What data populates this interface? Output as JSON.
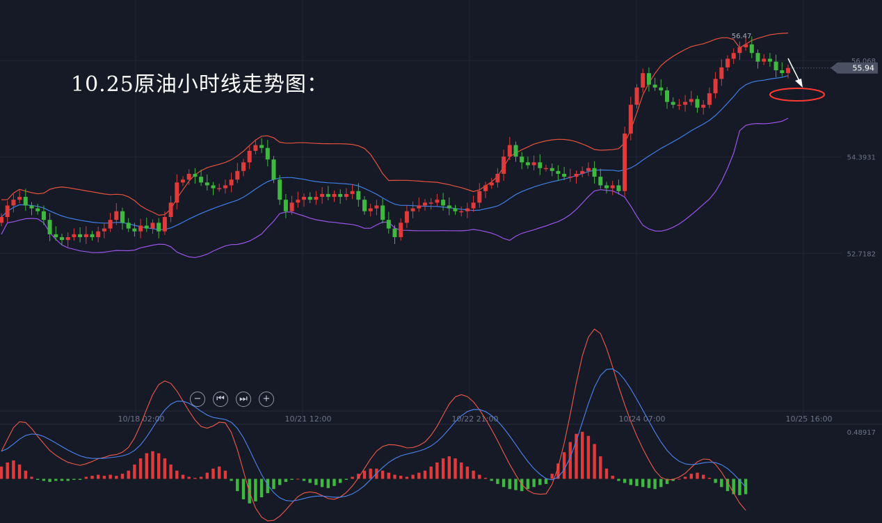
{
  "header": {
    "title": "10.25原油小时线走势图："
  },
  "controls": {
    "zoom_out": "−",
    "step_back": "⏮",
    "step_forward": "⏭",
    "zoom_in": "+"
  },
  "price_panel": {
    "high_label": "56.47",
    "last_price": "55.94",
    "axis_labels": [
      "56.068",
      "54.3931",
      "52.7182"
    ]
  },
  "time_axis": [
    "10/18 02:00",
    "10/21 12:00",
    "10/22 21:00",
    "10/24 07:00",
    "10/25 16:00"
  ],
  "macd_panel": {
    "axis_label": "0.48917"
  },
  "colors": {
    "background": "#161a27",
    "up": "#e03a3a",
    "down": "#3fb83f",
    "middle_band": "#3f7fe8",
    "upper_band": "#e5533d",
    "lower_band": "#9b55e8",
    "macd_line": "#4a86f0",
    "signal_line": "#ef5a48",
    "annotation": "#ff3b30"
  },
  "chart_data": [
    {
      "type": "candlestick",
      "title": "10.25原油小时线走势图：",
      "interval": "1h",
      "ylim": [
        51.9,
        57.0
      ],
      "y_ticks": [
        56.068,
        54.3931,
        52.7182
      ],
      "x_ticks": [
        "10/18 02:00",
        "10/21 12:00",
        "10/22 21:00",
        "10/24 07:00",
        "10/25 16:00"
      ],
      "last_price": 55.94,
      "high_marker": 56.47,
      "candles_close": [
        53.35,
        53.55,
        53.65,
        53.7,
        53.55,
        53.5,
        53.45,
        53.3,
        53.05,
        53.0,
        52.95,
        53.0,
        53.05,
        53.0,
        53.05,
        53.0,
        53.1,
        53.15,
        53.3,
        53.45,
        53.25,
        53.15,
        53.1,
        53.2,
        53.15,
        53.25,
        53.1,
        53.35,
        53.6,
        53.95,
        54.0,
        54.1,
        54.05,
        53.95,
        53.9,
        53.85,
        53.85,
        53.9,
        54.0,
        54.15,
        54.3,
        54.5,
        54.6,
        54.55,
        54.35,
        54.0,
        53.65,
        53.45,
        53.6,
        53.65,
        53.7,
        53.65,
        53.7,
        53.75,
        53.7,
        53.75,
        53.7,
        53.75,
        53.8,
        53.65,
        53.45,
        53.5,
        53.55,
        53.3,
        53.15,
        53.0,
        53.25,
        53.45,
        53.5,
        53.55,
        53.6,
        53.6,
        53.65,
        53.55,
        53.5,
        53.45,
        53.45,
        53.5,
        53.6,
        53.8,
        53.9,
        53.95,
        54.1,
        54.4,
        54.6,
        54.4,
        54.3,
        54.25,
        54.3,
        54.2,
        54.2,
        54.15,
        54.1,
        54.05,
        54.05,
        54.1,
        54.15,
        54.2,
        54.05,
        53.9,
        53.85,
        53.9,
        53.8,
        54.8,
        55.3,
        55.6,
        55.85,
        55.65,
        55.6,
        55.55,
        55.35,
        55.3,
        55.3,
        55.35,
        55.4,
        55.25,
        55.3,
        55.5,
        55.75,
        55.95,
        56.1,
        56.2,
        56.3,
        56.35,
        56.2,
        56.05,
        56.1,
        56.05,
        55.9,
        55.85,
        55.94
      ],
      "bollinger": {
        "period": 20,
        "upper_shape": "widening after 10/24 07:00, peak near 57.0",
        "lower_shape": "min near 52.9 before sharp rally"
      }
    },
    {
      "type": "bar",
      "title": "MACD",
      "ylim": [
        -0.35,
        0.52
      ],
      "y_ticks": [
        0.48917
      ],
      "histogram": [
        0.12,
        0.16,
        0.18,
        0.14,
        0.08,
        0.02,
        -0.01,
        -0.02,
        -0.03,
        -0.02,
        -0.02,
        -0.02,
        -0.01,
        -0.01,
        0.02,
        0.03,
        0.04,
        0.03,
        0.04,
        0.03,
        0.05,
        0.08,
        0.14,
        0.2,
        0.25,
        0.27,
        0.25,
        0.2,
        0.14,
        0.08,
        0.04,
        0.02,
        0.01,
        0.02,
        0.06,
        0.1,
        0.12,
        0.08,
        -0.02,
        -0.12,
        -0.2,
        -0.24,
        -0.22,
        -0.18,
        -0.14,
        -0.1,
        -0.06,
        -0.03,
        -0.01,
        0.0,
        -0.02,
        -0.04,
        -0.06,
        -0.08,
        -0.09,
        -0.07,
        -0.04,
        -0.01,
        0.02,
        0.05,
        0.08,
        0.1,
        0.1,
        0.08,
        0.06,
        0.04,
        0.03,
        0.02,
        0.04,
        0.06,
        0.08,
        0.12,
        0.16,
        0.2,
        0.22,
        0.2,
        0.16,
        0.12,
        0.08,
        0.04,
        0.01,
        -0.02,
        -0.05,
        -0.08,
        -0.1,
        -0.11,
        -0.12,
        -0.1,
        -0.08,
        -0.06,
        -0.05,
        0.05,
        0.15,
        0.26,
        0.36,
        0.44,
        0.46,
        0.42,
        0.34,
        0.22,
        0.1,
        0.03,
        -0.02,
        -0.04,
        -0.06,
        -0.07,
        -0.08,
        -0.09,
        -0.1,
        -0.08,
        -0.05,
        -0.02,
        0.0,
        0.02,
        0.05,
        0.06,
        0.04,
        0.01,
        -0.04,
        -0.08,
        -0.12,
        -0.15,
        -0.16,
        -0.15
      ],
      "macd_line_shape": "peak ~0.46 near 10/24 07:00, ending ~0.28",
      "signal_line_shape": "lags MACD, ending ~0.22"
    }
  ]
}
